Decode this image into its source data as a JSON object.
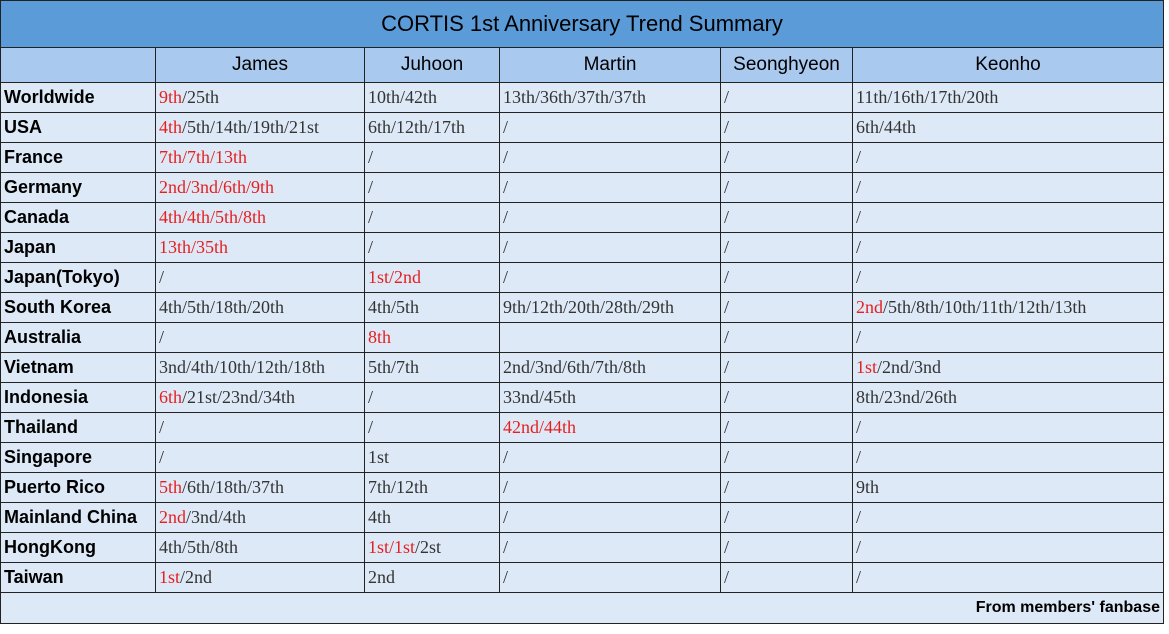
{
  "title": "CORTIS 1st Anniversary Trend Summary",
  "columns": [
    "James",
    "Juhoon",
    "Martin",
    "Seonghyeon",
    "Keonho"
  ],
  "rows": [
    {
      "label": "Worldwide",
      "cells": [
        [
          {
            "text": "9th",
            "color": "#e52020"
          },
          {
            "text": "/25th"
          }
        ],
        "10th/42th",
        "13th/36th/37th/37th",
        "/",
        "11th/16th/17th/20th"
      ]
    },
    {
      "label": "USA",
      "cells": [
        [
          {
            "text": "4th",
            "color": "#e52020"
          },
          {
            "text": "/5th/14th/19th/21st"
          }
        ],
        "6th/12th/17th",
        "/",
        "/",
        "6th/44th"
      ]
    },
    {
      "label": "France",
      "cells": [
        [
          {
            "text": "7th/7th/13th",
            "color": "#e52020"
          }
        ],
        "/",
        "/",
        "/",
        "/"
      ]
    },
    {
      "label": "Germany",
      "cells": [
        [
          {
            "text": "2nd/3nd/6th/9th",
            "color": "#e52020"
          }
        ],
        "/",
        "/",
        "/",
        "/"
      ]
    },
    {
      "label": "Canada",
      "cells": [
        [
          {
            "text": "4th/4th/5th/8th",
            "color": "#e52020"
          }
        ],
        "/",
        "/",
        "/",
        "/"
      ]
    },
    {
      "label": "Japan",
      "cells": [
        [
          {
            "text": "13th/35th",
            "color": "#e52020"
          }
        ],
        "/",
        "/",
        "/",
        "/"
      ]
    },
    {
      "label": "Japan(Tokyo)",
      "cells": [
        "/",
        [
          {
            "text": "1st/2nd",
            "color": "#e52020"
          }
        ],
        "/",
        "/",
        "/"
      ]
    },
    {
      "label": "South Korea",
      "cells": [
        "4th/5th/18th/20th",
        "4th/5th",
        "9th/12th/20th/28th/29th",
        "/",
        [
          {
            "text": "2nd",
            "color": "#e52020"
          },
          {
            "text": "/5th/8th/10th/11th/12th/13th"
          }
        ]
      ]
    },
    {
      "label": "Australia",
      "cells": [
        "/",
        [
          {
            "text": "8th",
            "color": "#e52020"
          }
        ],
        null,
        "/",
        "/"
      ]
    },
    {
      "label": "Vietnam",
      "cells": [
        "3nd/4th/10th/12th/18th",
        "5th/7th",
        "2nd/3nd/6th/7th/8th",
        "/",
        [
          {
            "text": "1st",
            "color": "#e52020"
          },
          {
            "text": "/2nd/3nd"
          }
        ]
      ]
    },
    {
      "label": "Indonesia",
      "cells": [
        [
          {
            "text": "6th",
            "color": "#e52020"
          },
          {
            "text": "/21st/23nd/34th"
          }
        ],
        "/",
        "33nd/45th",
        "/",
        "8th/23nd/26th"
      ]
    },
    {
      "label": "Thailand",
      "cells": [
        "/",
        "/",
        [
          {
            "text": "42nd/44th",
            "color": "#e52020"
          }
        ],
        "/",
        "/"
      ]
    },
    {
      "label": "Singapore",
      "cells": [
        "/",
        "1st",
        "/",
        "/",
        "/"
      ]
    },
    {
      "label": "Puerto Rico",
      "cells": [
        [
          {
            "text": "5th",
            "color": "#e52020"
          },
          {
            "text": "/6th/18th/37th"
          }
        ],
        "7th/12th",
        "/",
        "/",
        "9th"
      ]
    },
    {
      "label": "Mainland China",
      "cells": [
        [
          {
            "text": "2nd",
            "color": "#e52020"
          },
          {
            "text": "/3nd/4th"
          }
        ],
        "4th",
        "/",
        "/",
        "/"
      ]
    },
    {
      "label": "HongKong",
      "cells": [
        "4th/5th/8th",
        [
          {
            "text": "1st/1st",
            "color": "#e52020"
          },
          {
            "text": "/2st"
          }
        ],
        "/",
        "/",
        "/"
      ]
    },
    {
      "label": "Taiwan",
      "cells": [
        [
          {
            "text": "1st",
            "color": "#e52020"
          },
          {
            "text": "/2nd"
          }
        ],
        "2nd",
        "/",
        "/",
        "/"
      ]
    }
  ],
  "footer": "From members' fanbase"
}
